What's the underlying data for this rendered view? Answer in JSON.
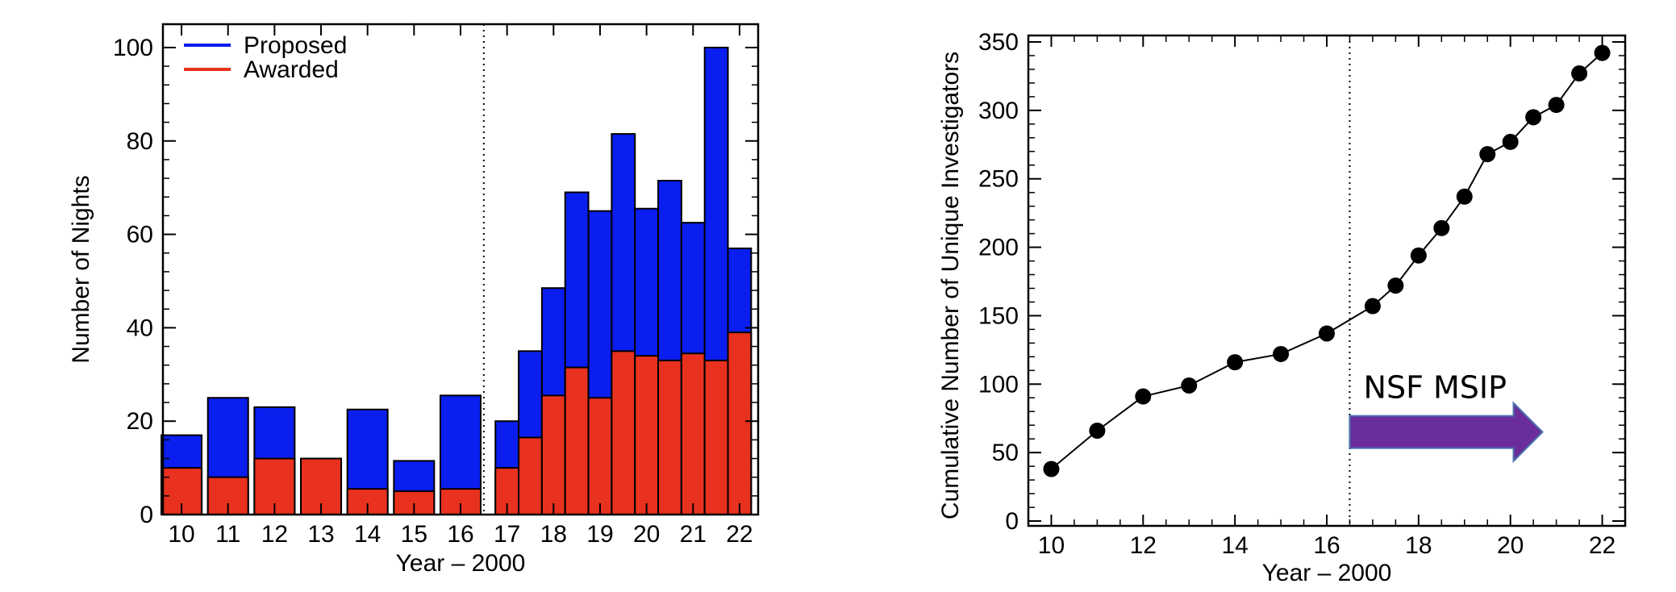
{
  "chart_data": [
    {
      "type": "bar",
      "stacked": "overlay",
      "xlabel": "Year – 2000",
      "ylabel": "Number of Nights",
      "ylim": [
        0,
        105
      ],
      "yticks": [
        0,
        20,
        40,
        60,
        80,
        100
      ],
      "xlim": [
        9.6,
        22.4
      ],
      "xticks": [
        10,
        11,
        12,
        13,
        14,
        15,
        16,
        17,
        18,
        19,
        20,
        21,
        22
      ],
      "divider_x": 16.5,
      "legend_position": "top-left",
      "colors": {
        "proposed": "#0a1ef0",
        "awarded": "#e8311e"
      },
      "x": [
        10,
        11,
        12,
        13,
        14,
        15,
        16,
        17,
        17.5,
        18,
        18.5,
        19,
        19.5,
        20,
        20.5,
        21,
        21.5,
        22
      ],
      "series": [
        {
          "name": "Proposed",
          "key": "proposed",
          "values": [
            17,
            25,
            23,
            12,
            22.5,
            11.5,
            25.5,
            20,
            35,
            48.5,
            69,
            65,
            81.5,
            65.5,
            71.5,
            62.5,
            100,
            57
          ]
        },
        {
          "name": "Awarded",
          "key": "awarded",
          "values": [
            10,
            8,
            12,
            12,
            5.5,
            5,
            5.5,
            10,
            16.5,
            25.5,
            31.5,
            25,
            35,
            34,
            33,
            34.5,
            33,
            39
          ]
        }
      ]
    },
    {
      "type": "line",
      "xlabel": "Year – 2000",
      "ylabel": "Cumulative Number of Unique Investigators",
      "ylim": [
        0,
        350
      ],
      "yticks": [
        0,
        50,
        100,
        150,
        200,
        250,
        300,
        350
      ],
      "xlim": [
        9.5,
        22.5
      ],
      "xticks": [
        10,
        12,
        14,
        16,
        18,
        20,
        22
      ],
      "divider_x": 16.5,
      "annotation": {
        "text": "NSF MSIP",
        "arrow_from_x": 16.5,
        "arrow_to_x": 20.7,
        "arrow_y": 65,
        "text_x": 16.8,
        "text_y": 97,
        "arrow_color": "#6a2d9a"
      },
      "x": [
        10,
        11,
        12,
        13,
        14,
        15,
        16,
        17,
        17.5,
        18,
        18.5,
        19,
        19.5,
        20,
        20.5,
        21,
        21.5,
        22
      ],
      "y": [
        38,
        66,
        91,
        99,
        116,
        122,
        137,
        157,
        172,
        194,
        214,
        237,
        268,
        277,
        295,
        304,
        327,
        342
      ]
    }
  ]
}
